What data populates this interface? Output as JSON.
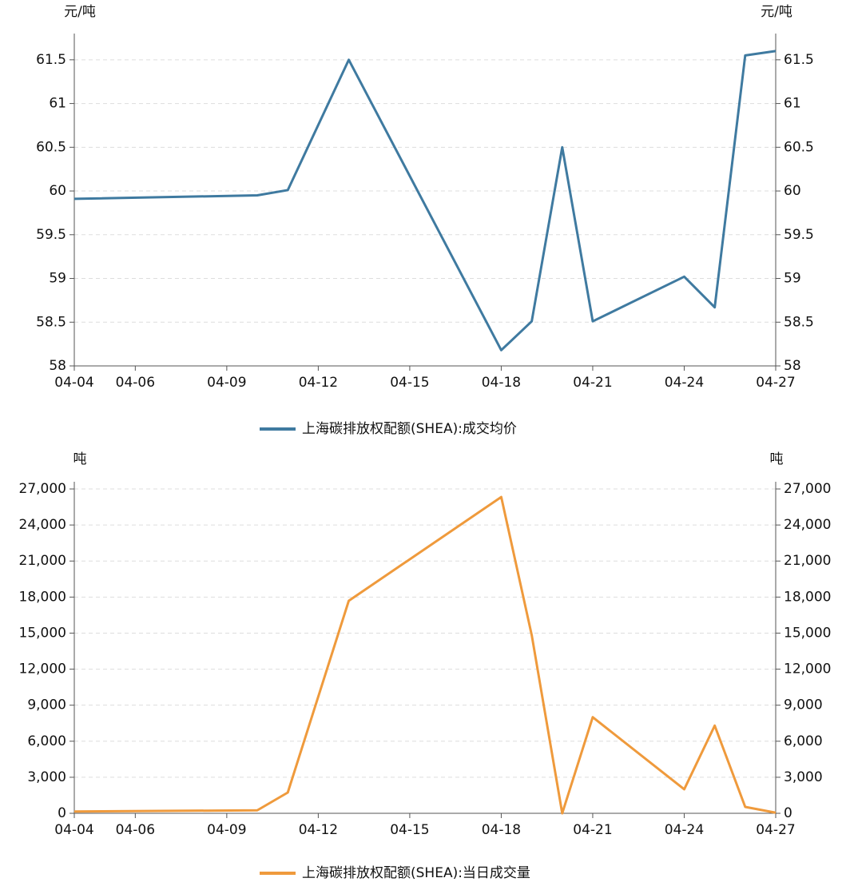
{
  "chart_data": [
    {
      "type": "line",
      "y_label": "元/吨",
      "x": [
        "04-04",
        "04-10",
        "04-11",
        "04-13",
        "04-18",
        "04-19",
        "04-20",
        "04-21",
        "04-24",
        "04-25",
        "04-26",
        "04-27"
      ],
      "xlim": [
        "04-04",
        "04-27"
      ],
      "xticks": [
        "04-04",
        "04-06",
        "04-09",
        "04-12",
        "04-15",
        "04-18",
        "04-21",
        "04-24",
        "04-27"
      ],
      "ylim": [
        58,
        61.8
      ],
      "yticks": [
        58,
        58.5,
        59,
        59.5,
        60,
        60.5,
        61,
        61.5
      ],
      "grid": true,
      "series": [
        {
          "name": "上海碳排放权配额(SHEA):成交均价",
          "color": "#3f7aa0",
          "values": [
            59.91,
            59.95,
            60.01,
            61.5,
            58.18,
            58.51,
            60.5,
            58.51,
            59.02,
            58.67,
            61.55,
            61.6
          ]
        }
      ]
    },
    {
      "type": "line",
      "y_label": "吨",
      "x": [
        "04-04",
        "04-10",
        "04-11",
        "04-13",
        "04-18",
        "04-19",
        "04-20",
        "04-21",
        "04-24",
        "04-25",
        "04-26",
        "04-27"
      ],
      "xlim": [
        "04-04",
        "04-27"
      ],
      "xticks": [
        "04-04",
        "04-06",
        "04-09",
        "04-12",
        "04-15",
        "04-18",
        "04-21",
        "04-24",
        "04-27"
      ],
      "ylim": [
        0,
        27600
      ],
      "yticks": [
        0,
        {
          "value": 3000,
          "label": "3,000"
        },
        {
          "value": 6000,
          "label": "6,000"
        },
        {
          "value": 9000,
          "label": "9,000"
        },
        {
          "value": 12000,
          "label": "12,000"
        },
        {
          "value": 15000,
          "label": "15,000"
        },
        {
          "value": 18000,
          "label": "18,000"
        },
        {
          "value": 21000,
          "label": "21,000"
        },
        {
          "value": 24000,
          "label": "24,000"
        },
        {
          "value": 27000,
          "label": "27,000"
        }
      ],
      "grid": true,
      "series": [
        {
          "name": "上海碳排放权配额(SHEA):当日成交量",
          "color": "#ef9a3c",
          "values": [
            150,
            250,
            1730,
            17690,
            26330,
            14830,
            0,
            8000,
            2000,
            7300,
            530,
            50
          ]
        }
      ]
    }
  ]
}
